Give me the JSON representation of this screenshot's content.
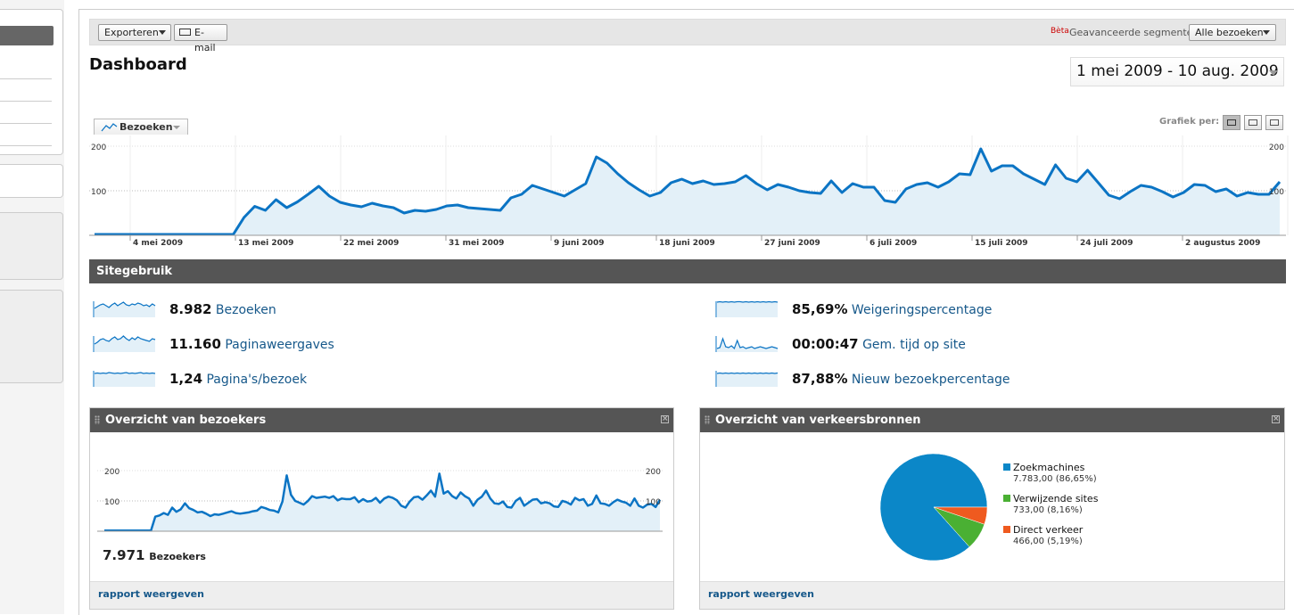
{
  "toolbar": {
    "export_label": "Exporteren",
    "email_label": "E-mail",
    "beta": "Bèta",
    "segments_label": "Geavanceerde segmenten:",
    "segments_value": "Alle bezoeken"
  },
  "page": {
    "title": "Dashboard",
    "date_range": "1 mei 2009 - 10 aug. 2009"
  },
  "graph": {
    "metric_label": "Bezoeken",
    "graph_per_label": "Grafiek per:"
  },
  "section": {
    "title": "Sitegebruik"
  },
  "stats": [
    {
      "value": "8.982",
      "label": "Bezoeken"
    },
    {
      "value": "11.160",
      "label": "Paginaweergaves"
    },
    {
      "value": "1,24",
      "label": "Pagina's/bezoek"
    },
    {
      "value": "85,69%",
      "label": "Weigeringspercentage"
    },
    {
      "value": "00:00:47",
      "label": "Gem. tijd op site"
    },
    {
      "value": "87,88%",
      "label": "Nieuw bezoekpercentage"
    }
  ],
  "visitors_panel": {
    "title": "Overzicht van bezoekers",
    "total": "7.971",
    "total_label": "Bezoekers",
    "footer_link": "rapport weergeven"
  },
  "traffic_panel": {
    "title": "Overzicht van verkeersbronnen",
    "footer_link": "rapport weergeven"
  },
  "chart_data": [
    {
      "type": "area",
      "series": [
        {
          "values": [
            2,
            2,
            2,
            2,
            2,
            2,
            2,
            2,
            2,
            2,
            2,
            2,
            2,
            2,
            40,
            65,
            56,
            80,
            62,
            75,
            92,
            110,
            88,
            74,
            68,
            64,
            72,
            66,
            62,
            50,
            56,
            54,
            58,
            66,
            68,
            62,
            60,
            58,
            56,
            84,
            92,
            112,
            104,
            96,
            88,
            102,
            116,
            176,
            162,
            138,
            118,
            102,
            88,
            96,
            118,
            126,
            116,
            122,
            114,
            116,
            120,
            134,
            116,
            102,
            114,
            108,
            100,
            96,
            94,
            122,
            96,
            116,
            108,
            108,
            78,
            74,
            104,
            114,
            118,
            108,
            120,
            138,
            136,
            194,
            144,
            156,
            156,
            138,
            126,
            114,
            158,
            128,
            120,
            146,
            118,
            90,
            82,
            98,
            112,
            108,
            98,
            86,
            96,
            114,
            112,
            98,
            104,
            88,
            96,
            92,
            92,
            120
          ]
        }
      ],
      "ylim": [
        0,
        200
      ],
      "yticks": [
        "200",
        "100"
      ],
      "xticks": [
        "4 mei 2009",
        "13 mei 2009",
        "22 mei 2009",
        "31 mei 2009",
        "9 juni 2009",
        "18 juni 2009",
        "27 juni 2009",
        "6 juli 2009",
        "15 juli 2009",
        "24 juli 2009",
        "2 augustus 2009"
      ]
    },
    {
      "type": "area",
      "series": [
        {
          "values": [
            2,
            2,
            2,
            2,
            2,
            2,
            2,
            2,
            2,
            2,
            2,
            2,
            48,
            52,
            60,
            54,
            78,
            64,
            72,
            92,
            76,
            70,
            62,
            64,
            58,
            50,
            56,
            54,
            58,
            62,
            66,
            60,
            58,
            60,
            62,
            66,
            68,
            80,
            76,
            70,
            68,
            62,
            98,
            184,
            120,
            100,
            94,
            88,
            100,
            116,
            110,
            112,
            114,
            110,
            116,
            102,
            108,
            106,
            106,
            112,
            96,
            106,
            98,
            100,
            110,
            94,
            108,
            114,
            110,
            102,
            84,
            78,
            98,
            112,
            114,
            104,
            118,
            134,
            114,
            190,
            124,
            132,
            116,
            108,
            128,
            116,
            108,
            84,
            104,
            114,
            134,
            108,
            92,
            90,
            98,
            80,
            78,
            100,
            110,
            84,
            94,
            104,
            106,
            92,
            96,
            92,
            82,
            80,
            100,
            96,
            88,
            110,
            102,
            106,
            84,
            90,
            118,
            92,
            90,
            84,
            96,
            104,
            98,
            94,
            84,
            108,
            84,
            78,
            88,
            90,
            80,
            104
          ]
        }
      ],
      "ylim": [
        0,
        200
      ],
      "yticks": [
        "200",
        "100"
      ]
    },
    {
      "type": "pie",
      "slices": [
        {
          "name": "Zoekmachines",
          "value": 7783.0,
          "label": "7.783,00 (86,65%)",
          "color": "#0b87c8"
        },
        {
          "name": "Verwijzende sites",
          "value": 733.0,
          "label": "733,00 (8,16%)",
          "color": "#4ab033"
        },
        {
          "name": "Direct verkeer",
          "value": 466.0,
          "label": "466,00 (5,19%)",
          "color": "#ef5a1f"
        }
      ]
    }
  ],
  "colors": {
    "series": "#0b74c4",
    "area_fill": "#e3f0f8",
    "link": "#16588a",
    "header_bar": "#555555"
  },
  "sparklines": [
    [
      20,
      24,
      28,
      30,
      26,
      22,
      28,
      32,
      26,
      30,
      34,
      28,
      26,
      30,
      28,
      32,
      30,
      26,
      28,
      24,
      30,
      26
    ],
    [
      18,
      22,
      28,
      30,
      26,
      24,
      30,
      34,
      28,
      30,
      36,
      30,
      26,
      32,
      28,
      34,
      30,
      28,
      26,
      24,
      30,
      28
    ],
    [
      30,
      31,
      30,
      31,
      30,
      32,
      31,
      30,
      31,
      30,
      31,
      32,
      30,
      31,
      30,
      31,
      32,
      30,
      31,
      30,
      31,
      30
    ],
    [
      34,
      35,
      34,
      35,
      34,
      35,
      34,
      35,
      35,
      34,
      35,
      34,
      35,
      34,
      35,
      34,
      35,
      34,
      35,
      34,
      35,
      34
    ],
    [
      8,
      10,
      30,
      12,
      10,
      14,
      8,
      26,
      10,
      12,
      8,
      10,
      12,
      8,
      10,
      12,
      10,
      8,
      10,
      12,
      10,
      8
    ],
    [
      30,
      31,
      30,
      31,
      30,
      31,
      30,
      31,
      30,
      31,
      30,
      31,
      30,
      31,
      30,
      31,
      30,
      31,
      30,
      31,
      30,
      31
    ]
  ]
}
